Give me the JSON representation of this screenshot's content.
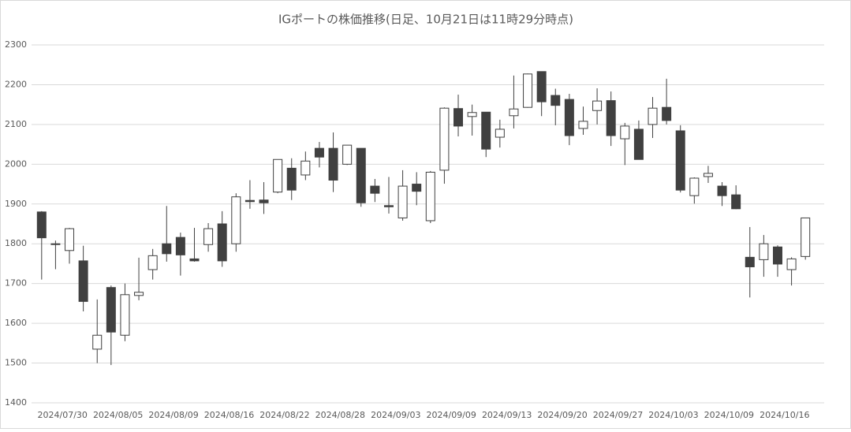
{
  "chart_data": {
    "type": "candlestick",
    "title": "IGポートの株価推移(日足、10月21日は11時29分時点)",
    "categories": [
      "2024/07/30",
      null,
      null,
      null,
      "2024/08/05",
      null,
      null,
      null,
      "2024/08/09",
      null,
      null,
      null,
      "2024/08/16",
      null,
      null,
      null,
      "2024/08/22",
      null,
      null,
      null,
      "2024/08/28",
      null,
      null,
      null,
      "2024/09/03",
      null,
      null,
      null,
      "2024/09/09",
      null,
      null,
      null,
      "2024/09/13",
      null,
      null,
      null,
      "2024/09/20",
      null,
      null,
      null,
      "2024/09/27",
      null,
      null,
      null,
      "2024/10/03",
      null,
      null,
      null,
      "2024/10/09",
      null,
      null,
      null,
      "2024/10/16",
      null,
      null,
      null
    ],
    "open": [
      1880,
      1798,
      1783,
      1757,
      1535,
      1690,
      1570,
      1670,
      1735,
      1800,
      1816,
      1762,
      1798,
      1850,
      1800,
      1909,
      1910,
      1930,
      1990,
      1973,
      2040,
      2040,
      2000,
      2040,
      1945,
      1896,
      1865,
      1950,
      1858,
      1985,
      2140,
      2120,
      2131,
      2068,
      2122,
      2143,
      2233,
      2173,
      2163,
      2090,
      2135,
      2160,
      2064,
      2088,
      2100,
      2143,
      2084,
      1921,
      1969,
      1945,
      1923,
      1766,
      1760,
      1792,
      1735,
      1768
    ],
    "high": [
      1882,
      1808,
      1840,
      1795,
      1660,
      1695,
      1700,
      1765,
      1787,
      1895,
      1828,
      1840,
      1852,
      1882,
      1927,
      1960,
      1955,
      2012,
      2015,
      2032,
      2056,
      2080,
      2048,
      2040,
      1963,
      1968,
      1985,
      1980,
      1983,
      2143,
      2175,
      2150,
      2131,
      2112,
      2223,
      2228,
      2233,
      2190,
      2177,
      2145,
      2191,
      2183,
      2104,
      2110,
      2169,
      2215,
      2098,
      1967,
      1996,
      1955,
      1947,
      1842,
      1822,
      1796,
      1766,
      1865
    ],
    "low": [
      1710,
      1736,
      1750,
      1630,
      1500,
      1495,
      1555,
      1658,
      1710,
      1755,
      1720,
      1755,
      1780,
      1742,
      1780,
      1888,
      1875,
      1927,
      1910,
      1960,
      1992,
      1930,
      1998,
      1893,
      1905,
      1876,
      1858,
      1897,
      1852,
      1951,
      2070,
      2072,
      2018,
      2042,
      2090,
      2142,
      2121,
      2098,
      2048,
      2074,
      2100,
      2046,
      1998,
      2012,
      2066,
      2100,
      1929,
      1901,
      1953,
      1895,
      1887,
      1665,
      1717,
      1717,
      1695,
      1760
    ],
    "close": [
      1815,
      1800,
      1838,
      1655,
      1570,
      1578,
      1672,
      1678,
      1770,
      1775,
      1772,
      1757,
      1838,
      1757,
      1918,
      1906,
      1903,
      2012,
      1935,
      2008,
      2018,
      1960,
      2048,
      1903,
      1927,
      1893,
      1945,
      1932,
      1980,
      2141,
      2096,
      2130,
      2038,
      2088,
      2139,
      2227,
      2157,
      2148,
      2072,
      2108,
      2159,
      2072,
      2096,
      2012,
      2141,
      2110,
      1935,
      1965,
      1977,
      1921,
      1888,
      1742,
      1800,
      1749,
      1762,
      1865
    ],
    "up_color": "#ffffff",
    "down_color": "#404040",
    "line_color": "#404040",
    "ylim": [
      1400,
      2300
    ],
    "yticks": [
      1400,
      1500,
      1600,
      1700,
      1800,
      1900,
      2000,
      2100,
      2200,
      2300
    ],
    "grid": true
  }
}
